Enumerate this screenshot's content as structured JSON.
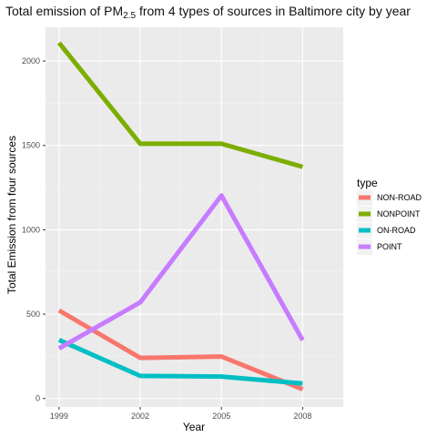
{
  "chart_data": {
    "type": "line",
    "title": {
      "prefix": "Total emission of PM",
      "subscript": "2.5",
      "suffix": " from 4 types of sources in Baltimore city by year"
    },
    "xlabel": "Year",
    "ylabel": "Total Emission from four sources",
    "x": [
      1999,
      2002,
      2005,
      2008
    ],
    "x_ticks": [
      "1999",
      "2002",
      "2005",
      "2008"
    ],
    "xlim": [
      1998.5,
      2009.5
    ],
    "y_ticks": [
      0,
      500,
      1000,
      1500,
      2000
    ],
    "ylim": [
      -50,
      2200
    ],
    "grid": true,
    "legend": {
      "title": "type",
      "position": "right"
    },
    "series": [
      {
        "name": "NON-ROAD",
        "color": "#F8766D",
        "values": [
          522,
          241,
          249,
          55
        ]
      },
      {
        "name": "NONPOINT",
        "color": "#7CAE00",
        "values": [
          2108,
          1510,
          1510,
          1373
        ]
      },
      {
        "name": "ON-ROAD",
        "color": "#00BFC4",
        "values": [
          347,
          134,
          130,
          89
        ]
      },
      {
        "name": "POINT",
        "color": "#C77CFF",
        "values": [
          297,
          570,
          1203,
          346
        ]
      }
    ]
  }
}
